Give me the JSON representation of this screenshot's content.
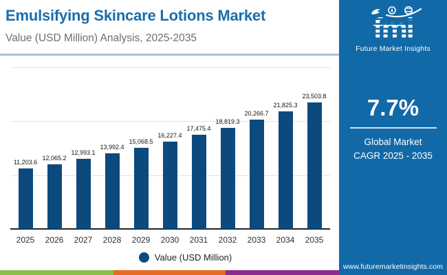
{
  "header": {
    "title": "Emulsifying Skincare Lotions Market",
    "subtitle": "Value (USD Million) Analysis, 2025-2035"
  },
  "chart_data": {
    "type": "bar",
    "title": "Emulsifying Skincare Lotions Market",
    "subtitle": "Value (USD Million) Analysis, 2025-2035",
    "categories": [
      "2025",
      "2026",
      "2027",
      "2028",
      "2029",
      "2030",
      "2031",
      "2032",
      "2033",
      "2034",
      "2035"
    ],
    "values": [
      11203.6,
      12065.2,
      12993.1,
      13992.4,
      15068.5,
      16227.4,
      17475.4,
      18819.3,
      20266.7,
      21825.3,
      23503.8
    ],
    "labels": [
      "11,203.6",
      "12,065.2",
      "12,993.1",
      "13,992.4",
      "15,068.5",
      "16,227.4",
      "17,475.4",
      "18,819.3",
      "20,266.7",
      "21,825.3",
      "23,503.8"
    ],
    "legend": "Value (USD Million)",
    "legend_position": "bottom",
    "xlabel": "",
    "ylabel": "",
    "ylim": [
      0,
      30000
    ],
    "gridlines": [
      10000,
      20000,
      30000
    ],
    "grid": true,
    "bar_color": "#0c4a7e"
  },
  "sidebar": {
    "logo": {
      "brand": "fmi",
      "name": "Future Market Insights"
    },
    "cagr_value": "7.7%",
    "cagr_label_line1": "Global Market",
    "cagr_label_line2": "CAGR 2025 - 2035",
    "website": "www.futuremarketinsights.com",
    "bg_color": "#1269a7"
  },
  "footer_stripes": [
    "#8cbf45",
    "#e66a1f",
    "#8c2d8f"
  ]
}
